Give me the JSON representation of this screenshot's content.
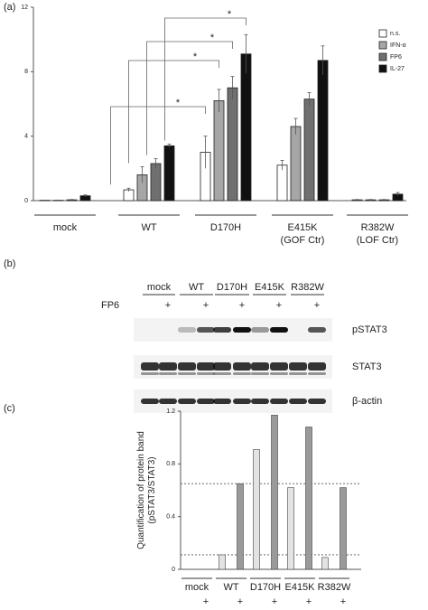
{
  "chart_data": [
    {
      "type": "bar",
      "panel_label": "(a)",
      "categories": [
        "mock",
        "WT",
        "D170H",
        "E415K",
        "R382W"
      ],
      "category_notes": [
        null,
        null,
        null,
        "(GOF Ctr)",
        "(LOF Ctr)"
      ],
      "series": [
        {
          "name": "n.s.",
          "color": "#ffffff",
          "values": [
            0.02,
            0.67,
            3.0,
            2.2,
            0.05
          ],
          "errors": [
            0.01,
            0.1,
            1.0,
            0.3,
            0.02
          ]
        },
        {
          "name": "IFN-α",
          "color": "#a6a6a6",
          "values": [
            0.02,
            1.6,
            6.2,
            4.6,
            0.05
          ],
          "errors": [
            0.01,
            0.5,
            0.7,
            0.5,
            0.02
          ]
        },
        {
          "name": "FP6",
          "color": "#707070",
          "values": [
            0.05,
            2.3,
            7.0,
            6.3,
            0.05
          ],
          "errors": [
            0.02,
            0.3,
            0.7,
            0.4,
            0.02
          ]
        },
        {
          "name": "IL-27",
          "color": "#111111",
          "values": [
            0.3,
            3.4,
            9.1,
            8.7,
            0.4
          ],
          "errors": [
            0.05,
            0.1,
            1.2,
            0.9,
            0.1
          ]
        }
      ],
      "annotations": [
        "*",
        "*",
        "*",
        "*"
      ],
      "ylim": [
        0,
        12
      ],
      "yticks": [
        0,
        4,
        8,
        12
      ],
      "legend": "top-right"
    },
    {
      "type": "bar",
      "panel_label": "(c)",
      "y_label": [
        "Quantification of protein band",
        "(pSTAT3/STAT3)"
      ],
      "categories": [
        "mock",
        "WT",
        "D170H",
        "E415K",
        "R382W"
      ],
      "treatment_label": "+",
      "series": [
        {
          "color": "#e3e3e3",
          "values": [
            0,
            0.11,
            0.91,
            0.62,
            0.09
          ]
        },
        {
          "color": "#9a9a9a",
          "values": [
            0,
            0.65,
            1.17,
            1.08,
            0.62
          ]
        }
      ],
      "reference_lines": [
        0.65,
        0.11
      ],
      "ylim": [
        0,
        1.2
      ],
      "yticks": [
        0,
        0.4,
        0.8,
        1.2
      ]
    }
  ],
  "blot": {
    "panel_label": "(b)",
    "lanes": [
      "mock",
      "WT",
      "D170H",
      "E415K",
      "R382W"
    ],
    "treatment": "FP6",
    "treatment_mark": "+",
    "rows": [
      "pSTAT3",
      "STAT3",
      "β-actin"
    ]
  }
}
